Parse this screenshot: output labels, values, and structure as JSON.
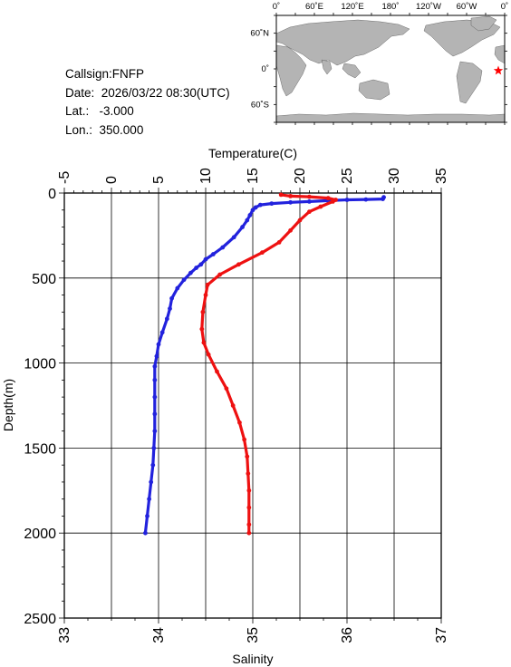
{
  "station": {
    "callsign": "Callsign:FNFP",
    "date": "Date:  2026/03/22 08:30(UTC)",
    "lat": "Lat.:   -3.000",
    "lon": "Lon.:  350.000"
  },
  "map": {
    "top_ticks": [
      "0˚",
      "60˚E",
      "120˚E",
      "180˚",
      "120˚W",
      "60˚W",
      "0˚"
    ],
    "left_ticks": [
      "60˚N",
      "0˚",
      "60˚S"
    ],
    "land_color": "#b4b4b4",
    "ocean_color": "#ffffff",
    "marker_color": "#ff0000",
    "marker": {
      "lon": 350.0,
      "lat": -3.0,
      "icon": "star-icon"
    }
  },
  "chart_data": {
    "type": "line",
    "xlabel_top": "Temperature(C)",
    "xlabel_bottom": "Salinity",
    "ylabel": "Depth(m)",
    "temp_ticks": [
      "-5",
      "0",
      "5",
      "10",
      "15",
      "20",
      "25",
      "30",
      "35"
    ],
    "sal_ticks": [
      "33",
      "34",
      "35",
      "36",
      "37"
    ],
    "depth_ticks": [
      "0",
      "500",
      "1000",
      "1500",
      "2000",
      "2500"
    ],
    "temp_range": [
      -5,
      35
    ],
    "sal_range": [
      33,
      37
    ],
    "depth_range": [
      0,
      2500
    ],
    "grid": true,
    "series": [
      {
        "color": "#2222dd",
        "axis": "temperature",
        "points": [
          [
            28.9,
            25
          ],
          [
            28.8,
            35
          ],
          [
            27.0,
            38
          ],
          [
            25.0,
            40
          ],
          [
            23.0,
            45
          ],
          [
            21.0,
            50
          ],
          [
            19.0,
            55
          ],
          [
            17.0,
            62
          ],
          [
            15.8,
            70
          ],
          [
            15.3,
            85
          ],
          [
            15.0,
            100
          ],
          [
            14.7,
            130
          ],
          [
            14.4,
            160
          ],
          [
            13.9,
            200
          ],
          [
            13.0,
            260
          ],
          [
            11.8,
            320
          ],
          [
            10.8,
            360
          ],
          [
            10.0,
            390
          ],
          [
            9.5,
            420
          ],
          [
            9.0,
            440
          ],
          [
            8.4,
            470
          ],
          [
            7.7,
            510
          ],
          [
            7.0,
            560
          ],
          [
            6.4,
            620
          ],
          [
            6.2,
            680
          ],
          [
            5.9,
            740
          ],
          [
            5.4,
            820
          ],
          [
            5.0,
            890
          ],
          [
            4.8,
            960
          ],
          [
            4.6,
            1020
          ],
          [
            4.6,
            1100
          ],
          [
            4.6,
            1200
          ],
          [
            4.6,
            1300
          ],
          [
            4.6,
            1400
          ],
          [
            4.5,
            1500
          ],
          [
            4.4,
            1600
          ],
          [
            4.2,
            1700
          ],
          [
            4.0,
            1800
          ],
          [
            3.8,
            1900
          ],
          [
            3.6,
            2000
          ]
        ]
      },
      {
        "color": "#ee1111",
        "axis": "salinity",
        "points": [
          [
            35.3,
            10
          ],
          [
            35.4,
            18
          ],
          [
            35.6,
            22
          ],
          [
            35.8,
            30
          ],
          [
            35.88,
            40
          ],
          [
            35.85,
            50
          ],
          [
            35.72,
            80
          ],
          [
            35.6,
            110
          ],
          [
            35.5,
            160
          ],
          [
            35.4,
            220
          ],
          [
            35.28,
            290
          ],
          [
            35.1,
            350
          ],
          [
            34.85,
            420
          ],
          [
            34.65,
            480
          ],
          [
            34.52,
            540
          ],
          [
            34.5,
            600
          ],
          [
            34.47,
            700
          ],
          [
            34.46,
            800
          ],
          [
            34.48,
            880
          ],
          [
            34.53,
            950
          ],
          [
            34.62,
            1050
          ],
          [
            34.72,
            1150
          ],
          [
            34.79,
            1250
          ],
          [
            34.86,
            1350
          ],
          [
            34.91,
            1450
          ],
          [
            34.94,
            1550
          ],
          [
            34.95,
            1650
          ],
          [
            34.96,
            1750
          ],
          [
            34.96,
            1850
          ],
          [
            34.96,
            1950
          ],
          [
            34.96,
            2000
          ]
        ]
      }
    ]
  }
}
